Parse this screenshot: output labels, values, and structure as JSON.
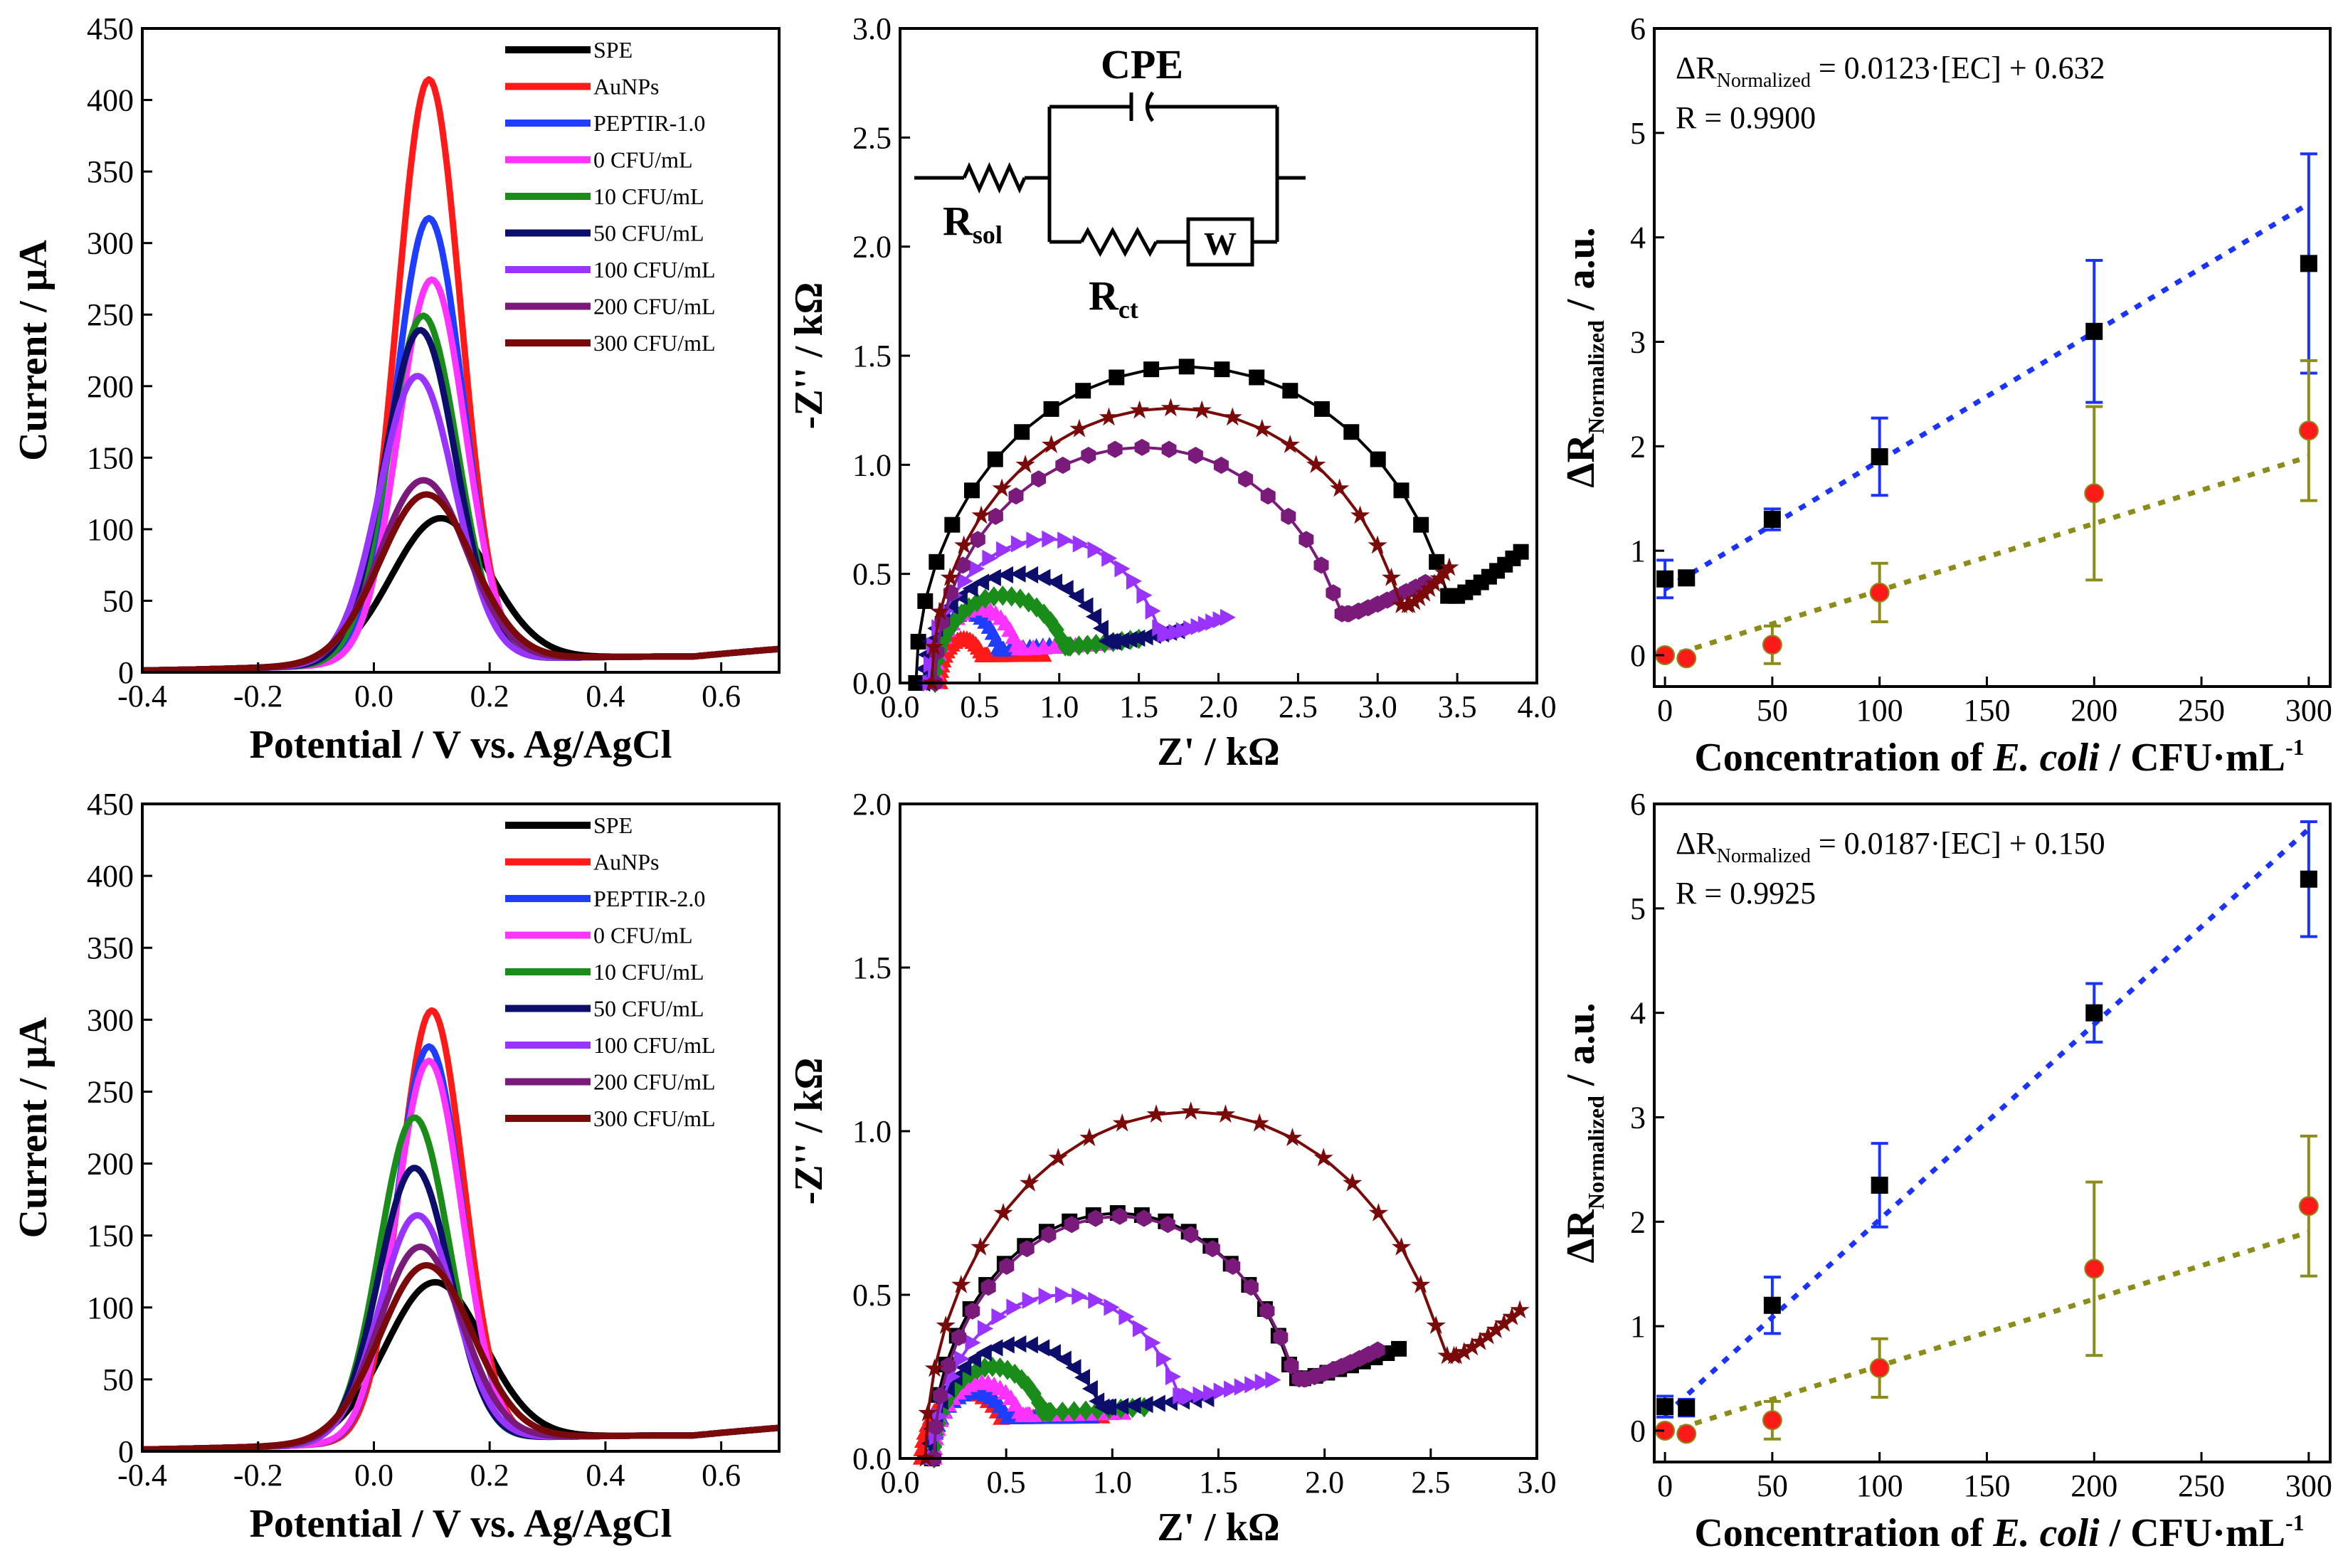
{
  "colors": {
    "SPE": "#000000",
    "AuNPs": "#ff1a1a",
    "PEPTIR": "#1f3dff",
    "0": "#ff33ff",
    "10": "#1a8c1a",
    "50": "#0d0d6b",
    "100": "#9933ff",
    "200": "#7a1a7a",
    "300": "#7a0a0a",
    "blue_fit": "#1a33ff",
    "olive_fit": "#8c8c1a",
    "red_point": "#ff1a1a"
  },
  "chart_data": [
    {
      "id": "dpv-top",
      "type": "line",
      "xlabel": "Potential / V vs. Ag/AgCl",
      "ylabel": "Current / μA",
      "xlim": [
        -0.4,
        0.7
      ],
      "ylim": [
        0,
        450
      ],
      "xticks": [
        "-0.4",
        "-0.2",
        "0.0",
        "0.2",
        "0.4",
        "0.6"
      ],
      "yticks": [
        "0",
        "50",
        "100",
        "150",
        "200",
        "250",
        "300",
        "350",
        "400",
        "450"
      ],
      "legend": [
        "SPE",
        "AuNPs",
        "PEPTIR-1.0",
        "0 CFU/mL",
        "10 CFU/mL",
        "50 CFU/mL",
        "100 CFU/mL",
        "200 CFU/mL",
        "300 CFU/mL"
      ],
      "series": [
        {
          "name": "SPE",
          "peak_x": 0.115,
          "peak_y": 108,
          "width": 0.085
        },
        {
          "name": "AuNPs",
          "peak_x": 0.095,
          "peak_y": 415,
          "width": 0.055
        },
        {
          "name": "PEPTIR-1.0",
          "peak_x": 0.095,
          "peak_y": 318,
          "width": 0.058
        },
        {
          "name": "0 CFU/mL",
          "peak_x": 0.1,
          "peak_y": 275,
          "width": 0.058
        },
        {
          "name": "10 CFU/mL",
          "peak_x": 0.085,
          "peak_y": 250,
          "width": 0.06
        },
        {
          "name": "50 CFU/mL",
          "peak_x": 0.08,
          "peak_y": 240,
          "width": 0.062
        },
        {
          "name": "100 CFU/mL",
          "peak_x": 0.075,
          "peak_y": 208,
          "width": 0.065
        },
        {
          "name": "200 CFU/mL",
          "peak_x": 0.085,
          "peak_y": 135,
          "width": 0.075
        },
        {
          "name": "300 CFU/mL",
          "peak_x": 0.09,
          "peak_y": 125,
          "width": 0.08
        }
      ]
    },
    {
      "id": "nyquist-top",
      "type": "scatter",
      "xlabel": "Z' / kΩ",
      "ylabel": "-Z'' / kΩ",
      "xlim": [
        0.0,
        4.0
      ],
      "ylim": [
        0.0,
        3.0
      ],
      "xticks": [
        "0.0",
        "0.5",
        "1.0",
        "1.5",
        "2.0",
        "2.5",
        "3.0",
        "3.5",
        "4.0"
      ],
      "yticks": [
        "0.0",
        "0.5",
        "1.0",
        "1.5",
        "2.0",
        "2.5",
        "3.0"
      ],
      "circuit": {
        "cpe": "CPE",
        "rsol": "R",
        "rsol_sub": "sol",
        "rct": "R",
        "rct_sub": "ct",
        "w": "W"
      },
      "series": [
        {
          "name": "SPE",
          "marker": "square",
          "r0": 0.1,
          "rct": 3.4,
          "height": 1.45,
          "tail_end": 3.9
        },
        {
          "name": "AuNPs",
          "marker": "tri-up",
          "r0": 0.25,
          "rct": 0.3,
          "height": 0.2,
          "tail_end": 0.9
        },
        {
          "name": "PEPTIR-1.0",
          "marker": "tri-up",
          "r0": 0.2,
          "rct": 0.45,
          "height": 0.32,
          "tail_end": 0.98
        },
        {
          "name": "0 CFU/mL",
          "marker": "tri-up",
          "r0": 0.22,
          "rct": 0.55,
          "height": 0.34,
          "tail_end": 1.3
        },
        {
          "name": "10 CFU/mL",
          "marker": "diamond",
          "r0": 0.22,
          "rct": 0.85,
          "height": 0.4,
          "tail_end": 1.5
        },
        {
          "name": "50 CFU/mL",
          "marker": "tri-left",
          "r0": 0.15,
          "rct": 1.2,
          "height": 0.5,
          "tail_end": 1.75
        },
        {
          "name": "100 CFU/mL",
          "marker": "tri-right",
          "r0": 0.18,
          "rct": 1.5,
          "height": 0.66,
          "tail_end": 2.05
        },
        {
          "name": "200 CFU/mL",
          "marker": "hexagon",
          "r0": 0.22,
          "rct": 2.6,
          "height": 1.08,
          "tail_end": 3.3
        },
        {
          "name": "300 CFU/mL",
          "marker": "star",
          "r0": 0.2,
          "rct": 3.0,
          "height": 1.26,
          "tail_end": 3.45
        }
      ]
    },
    {
      "id": "calib-top",
      "type": "scatter",
      "xlabel_prefix": "Concentration of ",
      "xlabel_italic": "E. coli",
      "xlabel_suffix": " / CFU·mL",
      "xlabel_sup": "-1",
      "ylabel_main": "ΔR",
      "ylabel_sub": "Normalized",
      "ylabel_unit": " / a.u.",
      "xlim": [
        -5,
        310
      ],
      "ylim": [
        -0.3,
        6
      ],
      "xticks": [
        "0",
        "50",
        "100",
        "150",
        "200",
        "250",
        "300"
      ],
      "yticks": [
        "0",
        "1",
        "2",
        "3",
        "4",
        "5",
        "6"
      ],
      "equation_main": "ΔR",
      "equation_sub": "Normalized",
      "equation_rest": " = 0.0123·[EC] + 0.632",
      "r_value": "R = 0.9900",
      "x": [
        0,
        10,
        50,
        100,
        200,
        300
      ],
      "series": [
        {
          "name": "blue",
          "marker": "square",
          "y": [
            0.73,
            0.74,
            1.3,
            1.9,
            3.1,
            3.75
          ],
          "err": [
            0.18,
            0.05,
            0.1,
            0.37,
            0.68,
            1.05
          ],
          "fit": [
            0.632,
            0.0123
          ]
        },
        {
          "name": "olive",
          "marker": "circle",
          "y": [
            0.0,
            -0.03,
            0.1,
            0.6,
            1.55,
            2.15
          ],
          "err": [
            0.03,
            0.03,
            0.18,
            0.28,
            0.83,
            0.67
          ],
          "fit": [
            -0.02,
            0.0064
          ]
        }
      ]
    },
    {
      "id": "dpv-bottom",
      "type": "line",
      "xlabel": "Potential / V vs. Ag/AgCl",
      "ylabel": "Current / μA",
      "xlim": [
        -0.4,
        0.7
      ],
      "ylim": [
        0,
        450
      ],
      "xticks": [
        "-0.4",
        "-0.2",
        "0.0",
        "0.2",
        "0.4",
        "0.6"
      ],
      "yticks": [
        "0",
        "50",
        "100",
        "150",
        "200",
        "250",
        "300",
        "350",
        "400",
        "450"
      ],
      "legend": [
        "SPE",
        "AuNPs",
        "PEPTIR-2.0",
        "0 CFU/mL",
        "10 CFU/mL",
        "50 CFU/mL",
        "100 CFU/mL",
        "200 CFU/mL",
        "300 CFU/mL"
      ],
      "series": [
        {
          "name": "SPE",
          "peak_x": 0.105,
          "peak_y": 118,
          "width": 0.085
        },
        {
          "name": "AuNPs",
          "peak_x": 0.1,
          "peak_y": 307,
          "width": 0.055
        },
        {
          "name": "PEPTIR-2.0",
          "peak_x": 0.095,
          "peak_y": 282,
          "width": 0.056
        },
        {
          "name": "0 CFU/mL",
          "peak_x": 0.095,
          "peak_y": 272,
          "width": 0.057
        },
        {
          "name": "10 CFU/mL",
          "peak_x": 0.07,
          "peak_y": 233,
          "width": 0.06
        },
        {
          "name": "50 CFU/mL",
          "peak_x": 0.07,
          "peak_y": 198,
          "width": 0.062
        },
        {
          "name": "100 CFU/mL",
          "peak_x": 0.075,
          "peak_y": 165,
          "width": 0.065
        },
        {
          "name": "200 CFU/mL",
          "peak_x": 0.08,
          "peak_y": 143,
          "width": 0.072
        },
        {
          "name": "300 CFU/mL",
          "peak_x": 0.09,
          "peak_y": 130,
          "width": 0.08
        }
      ]
    },
    {
      "id": "nyquist-bottom",
      "type": "scatter",
      "xlabel": "Z' / kΩ",
      "ylabel": "-Z'' / kΩ",
      "xlim": [
        0.0,
        3.0
      ],
      "ylim": [
        0.0,
        2.0
      ],
      "xticks": [
        "0.0",
        "0.5",
        "1.0",
        "1.5",
        "2.0",
        "2.5",
        "3.0"
      ],
      "yticks": [
        "0.0",
        "0.5",
        "1.0",
        "1.5",
        "2.0"
      ],
      "series": [
        {
          "name": "SPE",
          "marker": "square",
          "r0": 0.15,
          "rct": 1.75,
          "height": 0.75,
          "tail_end": 2.35
        },
        {
          "name": "AuNPs",
          "marker": "tri-up",
          "r0": 0.1,
          "rct": 0.42,
          "height": 0.2,
          "tail_end": 0.95
        },
        {
          "name": "PEPTIR-2.0",
          "marker": "tri-up",
          "r0": 0.15,
          "rct": 0.4,
          "height": 0.2,
          "tail_end": 0.9
        },
        {
          "name": "0 CFU/mL",
          "marker": "tri-up",
          "r0": 0.16,
          "rct": 0.45,
          "height": 0.23,
          "tail_end": 1.05
        },
        {
          "name": "10 CFU/mL",
          "marker": "diamond",
          "r0": 0.16,
          "rct": 0.55,
          "height": 0.28,
          "tail_end": 1.15
        },
        {
          "name": "50 CFU/mL",
          "marker": "tri-left",
          "r0": 0.14,
          "rct": 0.85,
          "height": 0.35,
          "tail_end": 1.45
        },
        {
          "name": "100 CFU/mL",
          "marker": "tri-right",
          "r0": 0.16,
          "rct": 1.2,
          "height": 0.5,
          "tail_end": 1.75
        },
        {
          "name": "200 CFU/mL",
          "marker": "hexagon",
          "r0": 0.16,
          "rct": 1.75,
          "height": 0.74,
          "tail_end": 2.25
        },
        {
          "name": "300 CFU/mL",
          "marker": "star",
          "r0": 0.12,
          "rct": 2.5,
          "height": 1.06,
          "tail_end": 2.92
        }
      ]
    },
    {
      "id": "calib-bottom",
      "type": "scatter",
      "xlabel_prefix": "Concentration of ",
      "xlabel_italic": "E. coli",
      "xlabel_suffix": " / CFU·mL",
      "xlabel_sup": "-1",
      "ylabel_main": "ΔR",
      "ylabel_sub": "Normalized",
      "ylabel_unit": " / a.u.",
      "xlim": [
        -5,
        310
      ],
      "ylim": [
        -0.3,
        6
      ],
      "xticks": [
        "0",
        "50",
        "100",
        "150",
        "200",
        "250",
        "300"
      ],
      "yticks": [
        "0",
        "1",
        "2",
        "3",
        "4",
        "5",
        "6"
      ],
      "equation_main": "ΔR",
      "equation_sub": "Normalized",
      "equation_rest": " = 0.0187·[EC] + 0.150",
      "r_value": "R = 0.9925",
      "x": [
        0,
        10,
        50,
        100,
        200,
        300
      ],
      "series": [
        {
          "name": "blue",
          "marker": "square",
          "y": [
            0.23,
            0.22,
            1.2,
            2.35,
            4.0,
            5.28
          ],
          "err": [
            0.1,
            0.08,
            0.27,
            0.4,
            0.28,
            0.55
          ],
          "fit": [
            0.15,
            0.0187
          ]
        },
        {
          "name": "olive",
          "marker": "circle",
          "y": [
            0.0,
            -0.03,
            0.1,
            0.6,
            1.55,
            2.15
          ],
          "err": [
            0.03,
            0.03,
            0.18,
            0.28,
            0.83,
            0.67
          ],
          "fit": [
            -0.02,
            0.0064
          ]
        }
      ]
    }
  ]
}
